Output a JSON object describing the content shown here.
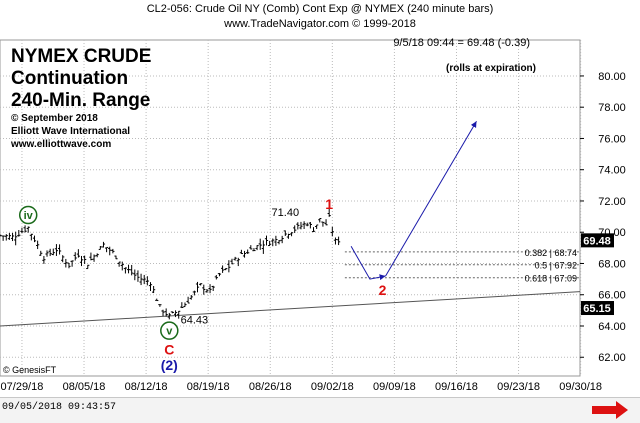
{
  "header": {
    "line1": "CL2-056:  Crude Oil NY (Comb) Cont Exp @ NYMEX  (240 minute bars)",
    "line2": "www.TradeNavigator.com © 1999-2018"
  },
  "title_block": {
    "line1": "NYMEX CRUDE",
    "line2": "Continuation",
    "line3": "240-Min. Range",
    "line4": "© September 2018",
    "line5": "Elliott Wave International",
    "line6": "www.elliottwave.com"
  },
  "footer": {
    "credit": "© GenesisFT",
    "timestamp": "09/05/2018 09:43:57"
  },
  "colors": {
    "bars": "#000000",
    "wave_red": "#dd1111",
    "wave_blue": "#1a1aaa",
    "wave_green": "#1a6a1a",
    "projection": "#1a1aaa",
    "axis_box": "#000000",
    "arrow_red": "#dd1111"
  },
  "chart_data": {
    "type": "ohlc",
    "readout": "9/5/18 09:44 = 69.48 (-0.39)",
    "note": "(rolls at expiration)",
    "x_tick_labels": [
      "07/29/18",
      "08/05/18",
      "08/12/18",
      "08/19/18",
      "08/26/18",
      "09/02/18",
      "09/09/18",
      "09/16/18",
      "09/23/18",
      "09/30/18"
    ],
    "y_ticks": [
      62.0,
      64.0,
      66.0,
      68.0,
      70.0,
      72.0,
      74.0,
      76.0,
      78.0,
      80.0
    ],
    "y_tick_labels": [
      "62.00",
      "64.00",
      "66.00",
      "68.00",
      "70.00",
      "72.00",
      "74.00",
      "76.00",
      "78.00",
      "80.00"
    ],
    "ylim": [
      60.8,
      82.3
    ],
    "grid": true,
    "price_boxes": [
      {
        "value": 69.48,
        "label": "69.48"
      },
      {
        "value": 65.15,
        "label": "65.15"
      }
    ],
    "anchors": [
      {
        "t": 0,
        "price": 69.8
      },
      {
        "t": 4,
        "price": 69.7
      },
      {
        "t": 9,
        "price": 70.3
      },
      {
        "t": 14,
        "price": 68.4
      },
      {
        "t": 18,
        "price": 68.9
      },
      {
        "t": 22,
        "price": 67.9
      },
      {
        "t": 25,
        "price": 68.6
      },
      {
        "t": 28,
        "price": 68.0
      },
      {
        "t": 33,
        "price": 69.2
      },
      {
        "t": 36,
        "price": 68.7
      },
      {
        "t": 40,
        "price": 67.7
      },
      {
        "t": 44,
        "price": 67.1
      },
      {
        "t": 48,
        "price": 66.8
      },
      {
        "t": 51,
        "price": 65.2
      },
      {
        "t": 54,
        "price": 64.6
      },
      {
        "t": 57,
        "price": 65.0
      },
      {
        "t": 60,
        "price": 65.6
      },
      {
        "t": 64,
        "price": 66.6
      },
      {
        "t": 67,
        "price": 66.2
      },
      {
        "t": 70,
        "price": 67.3
      },
      {
        "t": 73,
        "price": 67.8
      },
      {
        "t": 76,
        "price": 68.4
      },
      {
        "t": 80,
        "price": 68.9
      },
      {
        "t": 84,
        "price": 69.3
      },
      {
        "t": 88,
        "price": 69.5
      },
      {
        "t": 92,
        "price": 70.0
      },
      {
        "t": 96,
        "price": 70.4
      },
      {
        "t": 98,
        "price": 70.6
      },
      {
        "t": 100,
        "price": 70.2
      },
      {
        "t": 102,
        "price": 70.8
      },
      {
        "t": 104,
        "price": 70.5
      },
      {
        "t": 105,
        "price": 70.9
      },
      {
        "t": 106,
        "price": 70.1
      },
      {
        "t": 107,
        "price": 69.4
      },
      {
        "t": 108,
        "price": 69.5
      }
    ],
    "labels": [
      {
        "text": "iv",
        "style": "circle",
        "color": "#1a6a1a",
        "t": 9,
        "price": 71.1
      },
      {
        "text": "v",
        "style": "circle",
        "color": "#1a6a1a",
        "t": 54,
        "price": 63.7
      },
      {
        "text": "C",
        "style": "text",
        "color": "#dd1111",
        "t": 54,
        "price": 62.5
      },
      {
        "text": "(2)",
        "style": "text",
        "color": "#1a1aaa",
        "t": 54,
        "price": 61.5
      },
      {
        "text": "64.43",
        "style": "value",
        "color": "#000000",
        "t": 62,
        "price": 64.4
      },
      {
        "text": "71.40",
        "style": "value",
        "color": "#000000",
        "t": 91,
        "price": 71.3
      },
      {
        "text": "1",
        "style": "text",
        "color": "#dd1111",
        "t": 105,
        "price": 71.8
      },
      {
        "text": "2",
        "style": "text",
        "color": "#dd1111",
        "t": 122,
        "price": 66.3
      }
    ],
    "fib_levels": [
      {
        "ratio": "0.382",
        "price": 68.74,
        "label": "0.382 | 68.74"
      },
      {
        "ratio": "0.5",
        "price": 67.92,
        "label": "0.5 | 67.92"
      },
      {
        "ratio": "0.618",
        "price": 67.09,
        "label": "0.618 | 67.09"
      }
    ],
    "trendline": {
      "from": {
        "t": 0,
        "price": 64.0
      },
      "to": {
        "t": 185,
        "price": 66.2
      }
    },
    "projection_path": [
      {
        "t": 112,
        "price": 69.1
      },
      {
        "t": 118,
        "price": 67.0
      },
      {
        "t": 123,
        "price": 67.2
      },
      {
        "t": 152,
        "price": 77.1
      }
    ]
  }
}
